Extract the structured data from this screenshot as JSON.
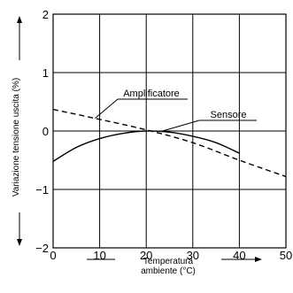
{
  "chart_data": {
    "type": "line",
    "xlabel": "Temperatura ambiente (°C)",
    "xlabel_lines": [
      "Temperatura",
      "ambiente (°C)"
    ],
    "ylabel": "Variazione tensione uscita (%)",
    "xlim": [
      0,
      50
    ],
    "ylim": [
      -2,
      2
    ],
    "xticks": [
      0,
      10,
      20,
      30,
      40,
      50
    ],
    "xtick_labels": [
      "0",
      "10",
      "20",
      "30",
      "40",
      "50"
    ],
    "yticks": [
      2,
      1,
      0,
      -1,
      -2
    ],
    "ytick_labels": [
      "2",
      "1",
      "0",
      "−1",
      "−2"
    ],
    "grid": true,
    "series": [
      {
        "name": "Sensore",
        "style": "solid",
        "x": [
          0,
          5,
          10,
          15,
          20,
          25,
          30,
          35,
          40
        ],
        "y": [
          -0.52,
          -0.28,
          -0.13,
          -0.04,
          0.0,
          -0.02,
          -0.09,
          -0.2,
          -0.38
        ]
      },
      {
        "name": "Amplificatore",
        "style": "dashed",
        "x": [
          0,
          10,
          20,
          30,
          40,
          50
        ],
        "y": [
          0.37,
          0.2,
          0.02,
          -0.2,
          -0.5,
          -0.78
        ]
      }
    ],
    "annotations": [
      {
        "text": "Amplificatore",
        "series": "Amplificatore",
        "at_x": 9
      },
      {
        "text": "Sensore",
        "series": "Sensore",
        "at_x": 23
      }
    ]
  }
}
